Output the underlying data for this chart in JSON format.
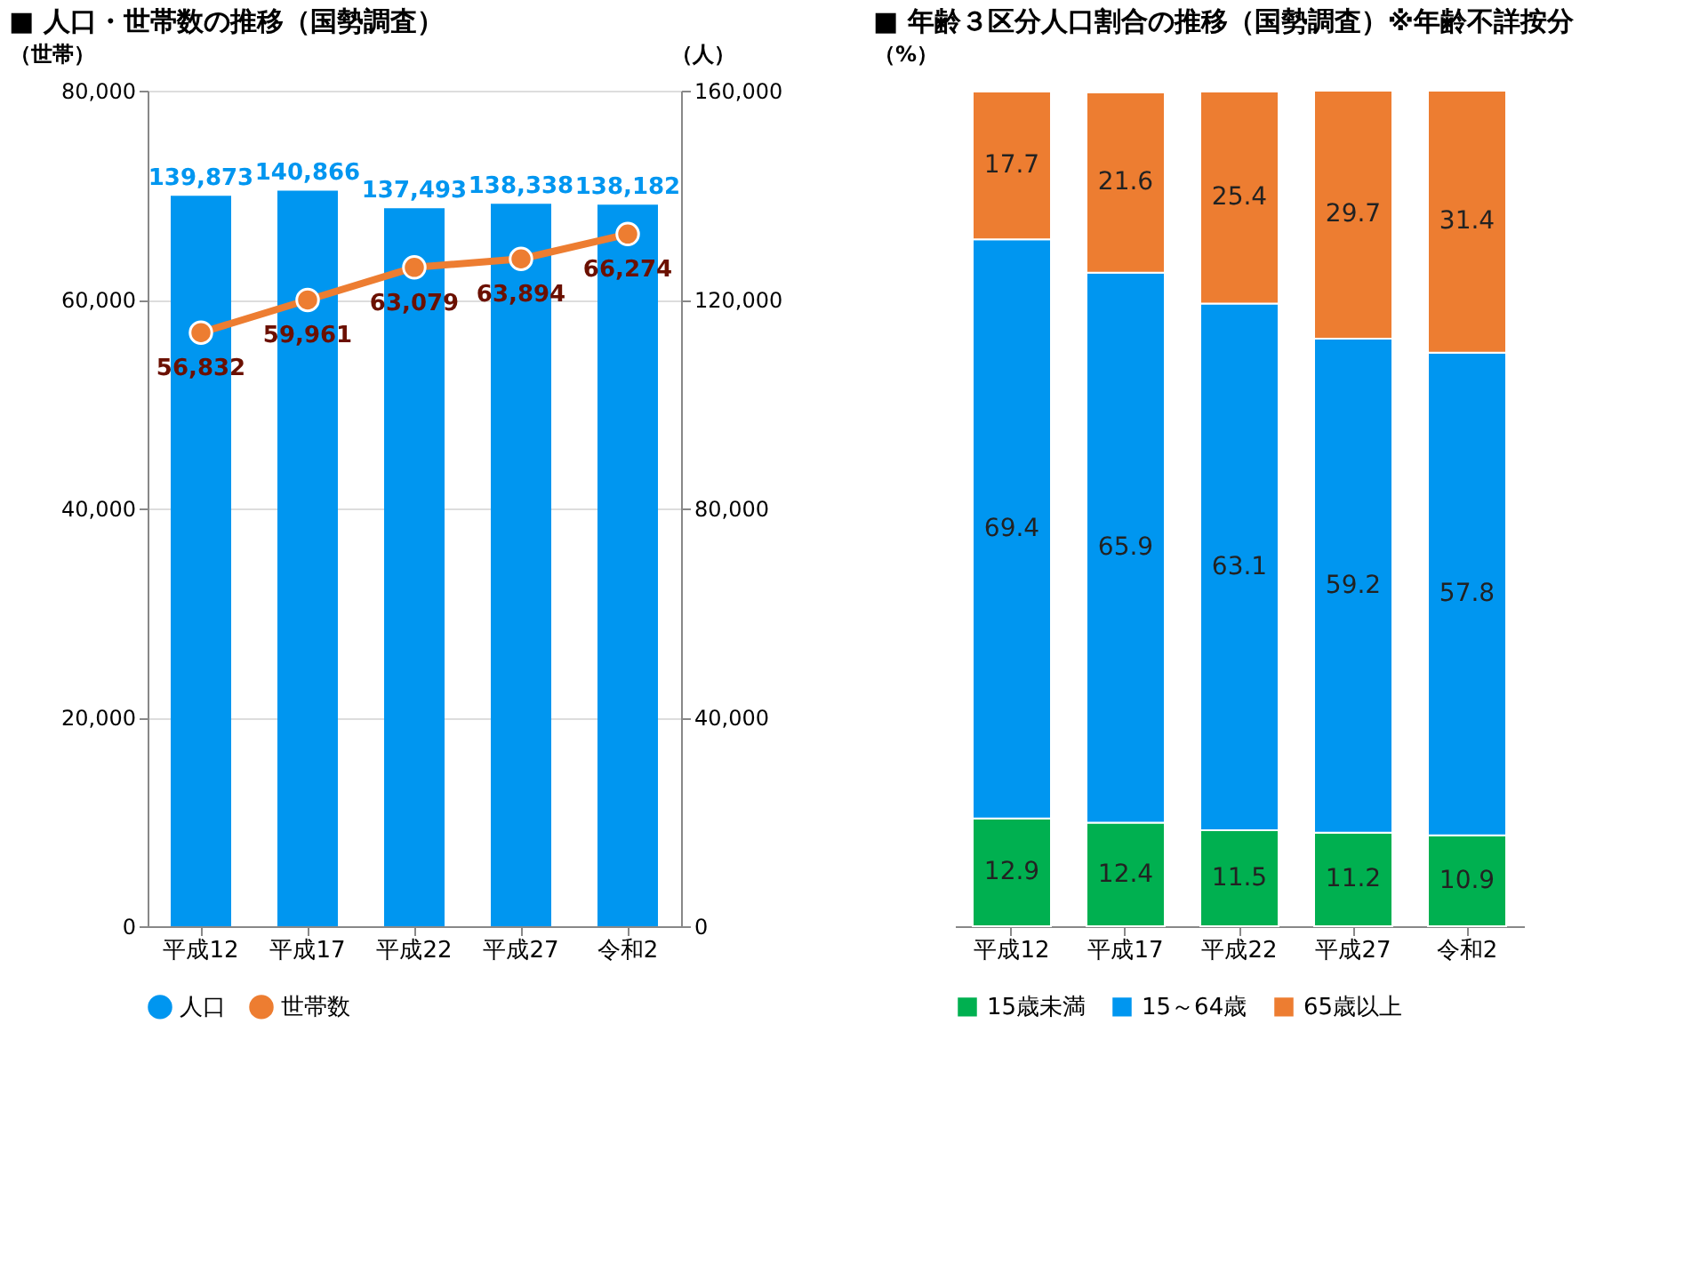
{
  "chart_data": [
    {
      "type": "bar",
      "title": "■ 人口・世帯数の推移（国勢調査）",
      "categories": [
        "平成12",
        "平成17",
        "平成22",
        "平成27",
        "令和2"
      ],
      "ylabel": "（世帯）",
      "ylim": [
        0,
        80000
      ],
      "yticks": [
        0,
        {
          "value": 20000,
          "label": "20,000"
        },
        {
          "value": 40000,
          "label": "40,000"
        },
        {
          "value": 60000,
          "label": "60,000"
        },
        {
          "value": 80000,
          "label": "80,000"
        }
      ],
      "y2label": "（人）",
      "y2lim": [
        0,
        160000
      ],
      "y2ticks": [
        0,
        {
          "value": 40000,
          "label": "40,000"
        },
        {
          "value": 80000,
          "label": "80,000"
        },
        {
          "value": 120000,
          "label": "120,000"
        },
        {
          "value": 160000,
          "label": "160,000"
        }
      ],
      "grid": "y",
      "legend": "bottom",
      "marker": "circle",
      "line_style": "solid",
      "series": [
        {
          "name": "人口",
          "axis": "y2",
          "color": "#0096f0",
          "values": [
            139873,
            140866,
            137493,
            138338,
            138182
          ],
          "value_labels": [
            "139,873",
            "140,866",
            "137,493",
            "138,338",
            "138,182"
          ]
        },
        {
          "name": "世帯数",
          "type": "line",
          "axis": "y",
          "color": "#ed7d31",
          "values": [
            56832,
            59961,
            63079,
            63894,
            66274
          ],
          "value_labels": [
            "56,832",
            "59,961",
            "63,079",
            "63,894",
            "66,274"
          ]
        }
      ]
    },
    {
      "type": "bar",
      "title": "■ 年齢３区分人口割合の推移（国勢調査）※年齢不詳按分",
      "ylabel": "（%）",
      "categories": [
        "平成12",
        "平成17",
        "平成22",
        "平成27",
        "令和2"
      ],
      "stacked": true,
      "data_labels": true,
      "tick_labels": "x",
      "legend": "bottom",
      "series": [
        {
          "name": "15歳未満",
          "color": "#00b050",
          "values": [
            12.9,
            12.4,
            11.5,
            11.2,
            10.9
          ]
        },
        {
          "name": "15～64歳",
          "color": "#0096f0",
          "values": [
            69.4,
            65.9,
            63.1,
            59.2,
            57.8
          ]
        },
        {
          "name": "65歳以上",
          "color": "#ed7d31",
          "values": [
            17.7,
            21.6,
            25.4,
            29.7,
            31.4
          ]
        }
      ]
    }
  ]
}
